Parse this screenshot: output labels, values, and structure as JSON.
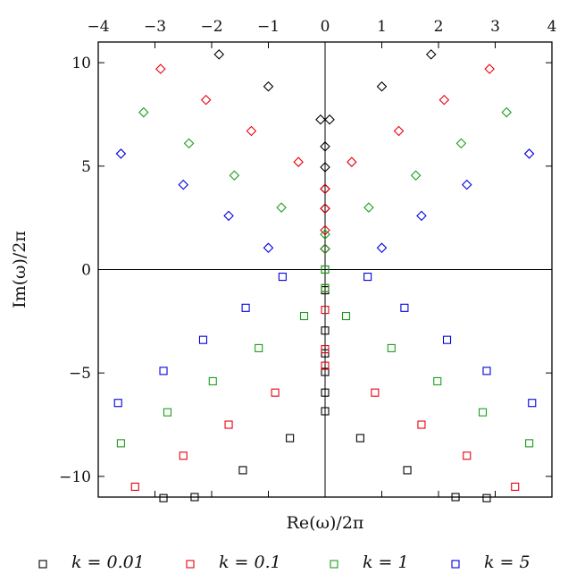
{
  "chart_data": {
    "type": "scatter",
    "xlabel": "Re(ω)/2π",
    "ylabel": "Im(ω)/2π",
    "xlim": [
      -4,
      4
    ],
    "ylim": [
      -11,
      11
    ],
    "x_ticks": [
      -4,
      -3,
      -2,
      -1,
      0,
      1,
      2,
      3,
      4
    ],
    "x_tick_labels": [
      "−4",
      "−3",
      "−2",
      "−1",
      "0",
      "1",
      "2",
      "3",
      "4"
    ],
    "y_ticks": [
      10,
      5,
      0,
      -5,
      -10
    ],
    "y_tick_labels": [
      "10",
      "5",
      "0",
      "−5",
      "−10"
    ],
    "zero_lines": true,
    "legend_position": "bottom",
    "series": [
      {
        "name": "k = 0.01",
        "color": "#000000",
        "diamonds": [
          [
            -1.87,
            10.4
          ],
          [
            1.87,
            10.4
          ],
          [
            -1.0,
            8.85
          ],
          [
            1.0,
            8.85
          ],
          [
            -0.08,
            7.25
          ],
          [
            0.08,
            7.25
          ],
          [
            0,
            5.95
          ],
          [
            0,
            4.95
          ],
          [
            0,
            3.9
          ],
          [
            0,
            2.95
          ],
          [
            0,
            1.0
          ]
        ],
        "squares": [
          [
            0,
            0
          ],
          [
            0,
            -1.0
          ],
          [
            0,
            -2.95
          ],
          [
            0,
            -4.05
          ],
          [
            0,
            -4.95
          ],
          [
            0,
            -5.95
          ],
          [
            0,
            -6.85
          ],
          [
            -0.62,
            -8.15
          ],
          [
            0.62,
            -8.15
          ],
          [
            -1.45,
            -9.7
          ],
          [
            1.45,
            -9.7
          ],
          [
            -2.3,
            -11.0
          ],
          [
            2.3,
            -11.0
          ],
          [
            -2.85,
            -11.05
          ],
          [
            2.85,
            -11.05
          ]
        ]
      },
      {
        "name": "k = 0.1",
        "color": "#e8000b",
        "diamonds": [
          [
            -2.9,
            9.7
          ],
          [
            2.9,
            9.7
          ],
          [
            -2.1,
            8.2
          ],
          [
            2.1,
            8.2
          ],
          [
            -1.3,
            6.7
          ],
          [
            1.3,
            6.7
          ],
          [
            -0.47,
            5.2
          ],
          [
            0.47,
            5.2
          ],
          [
            0,
            3.9
          ],
          [
            0,
            2.95
          ],
          [
            0,
            1.9
          ],
          [
            0,
            1.0
          ]
        ],
        "squares": [
          [
            0,
            -0.9
          ],
          [
            0,
            -1.95
          ],
          [
            0,
            -3.85
          ],
          [
            0,
            -4.65
          ],
          [
            -0.88,
            -5.95
          ],
          [
            0.88,
            -5.95
          ],
          [
            -1.7,
            -7.5
          ],
          [
            1.7,
            -7.5
          ],
          [
            -2.5,
            -9.0
          ],
          [
            2.5,
            -9.0
          ],
          [
            -3.35,
            -10.5
          ],
          [
            3.35,
            -10.5
          ]
        ]
      },
      {
        "name": "k = 1",
        "color": "#1a9e1a",
        "diamonds": [
          [
            -3.2,
            7.6
          ],
          [
            3.2,
            7.6
          ],
          [
            -2.4,
            6.1
          ],
          [
            2.4,
            6.1
          ],
          [
            -1.6,
            4.55
          ],
          [
            1.6,
            4.55
          ],
          [
            -0.77,
            3.0
          ],
          [
            0.77,
            3.0
          ],
          [
            0,
            1.7
          ],
          [
            0,
            1.0
          ]
        ],
        "squares": [
          [
            0,
            0
          ],
          [
            0,
            -0.9
          ],
          [
            -0.37,
            -2.25
          ],
          [
            0.37,
            -2.25
          ],
          [
            -1.17,
            -3.8
          ],
          [
            1.17,
            -3.8
          ],
          [
            -1.98,
            -5.4
          ],
          [
            1.98,
            -5.4
          ],
          [
            -2.78,
            -6.9
          ],
          [
            2.78,
            -6.9
          ],
          [
            -3.6,
            -8.4
          ],
          [
            3.6,
            -8.4
          ]
        ]
      },
      {
        "name": "k = 5",
        "color": "#0000dd",
        "diamonds": [
          [
            -3.6,
            5.6
          ],
          [
            3.6,
            5.6
          ],
          [
            -2.5,
            4.1
          ],
          [
            2.5,
            4.1
          ],
          [
            -1.7,
            2.6
          ],
          [
            1.7,
            2.6
          ],
          [
            -1.0,
            1.05
          ],
          [
            1.0,
            1.05
          ]
        ],
        "squares": [
          [
            -0.75,
            -0.35
          ],
          [
            0.75,
            -0.35
          ],
          [
            -1.4,
            -1.85
          ],
          [
            1.4,
            -1.85
          ],
          [
            -2.15,
            -3.4
          ],
          [
            2.15,
            -3.4
          ],
          [
            -2.85,
            -4.9
          ],
          [
            2.85,
            -4.9
          ],
          [
            -3.65,
            -6.45
          ],
          [
            3.65,
            -6.45
          ]
        ]
      }
    ]
  }
}
